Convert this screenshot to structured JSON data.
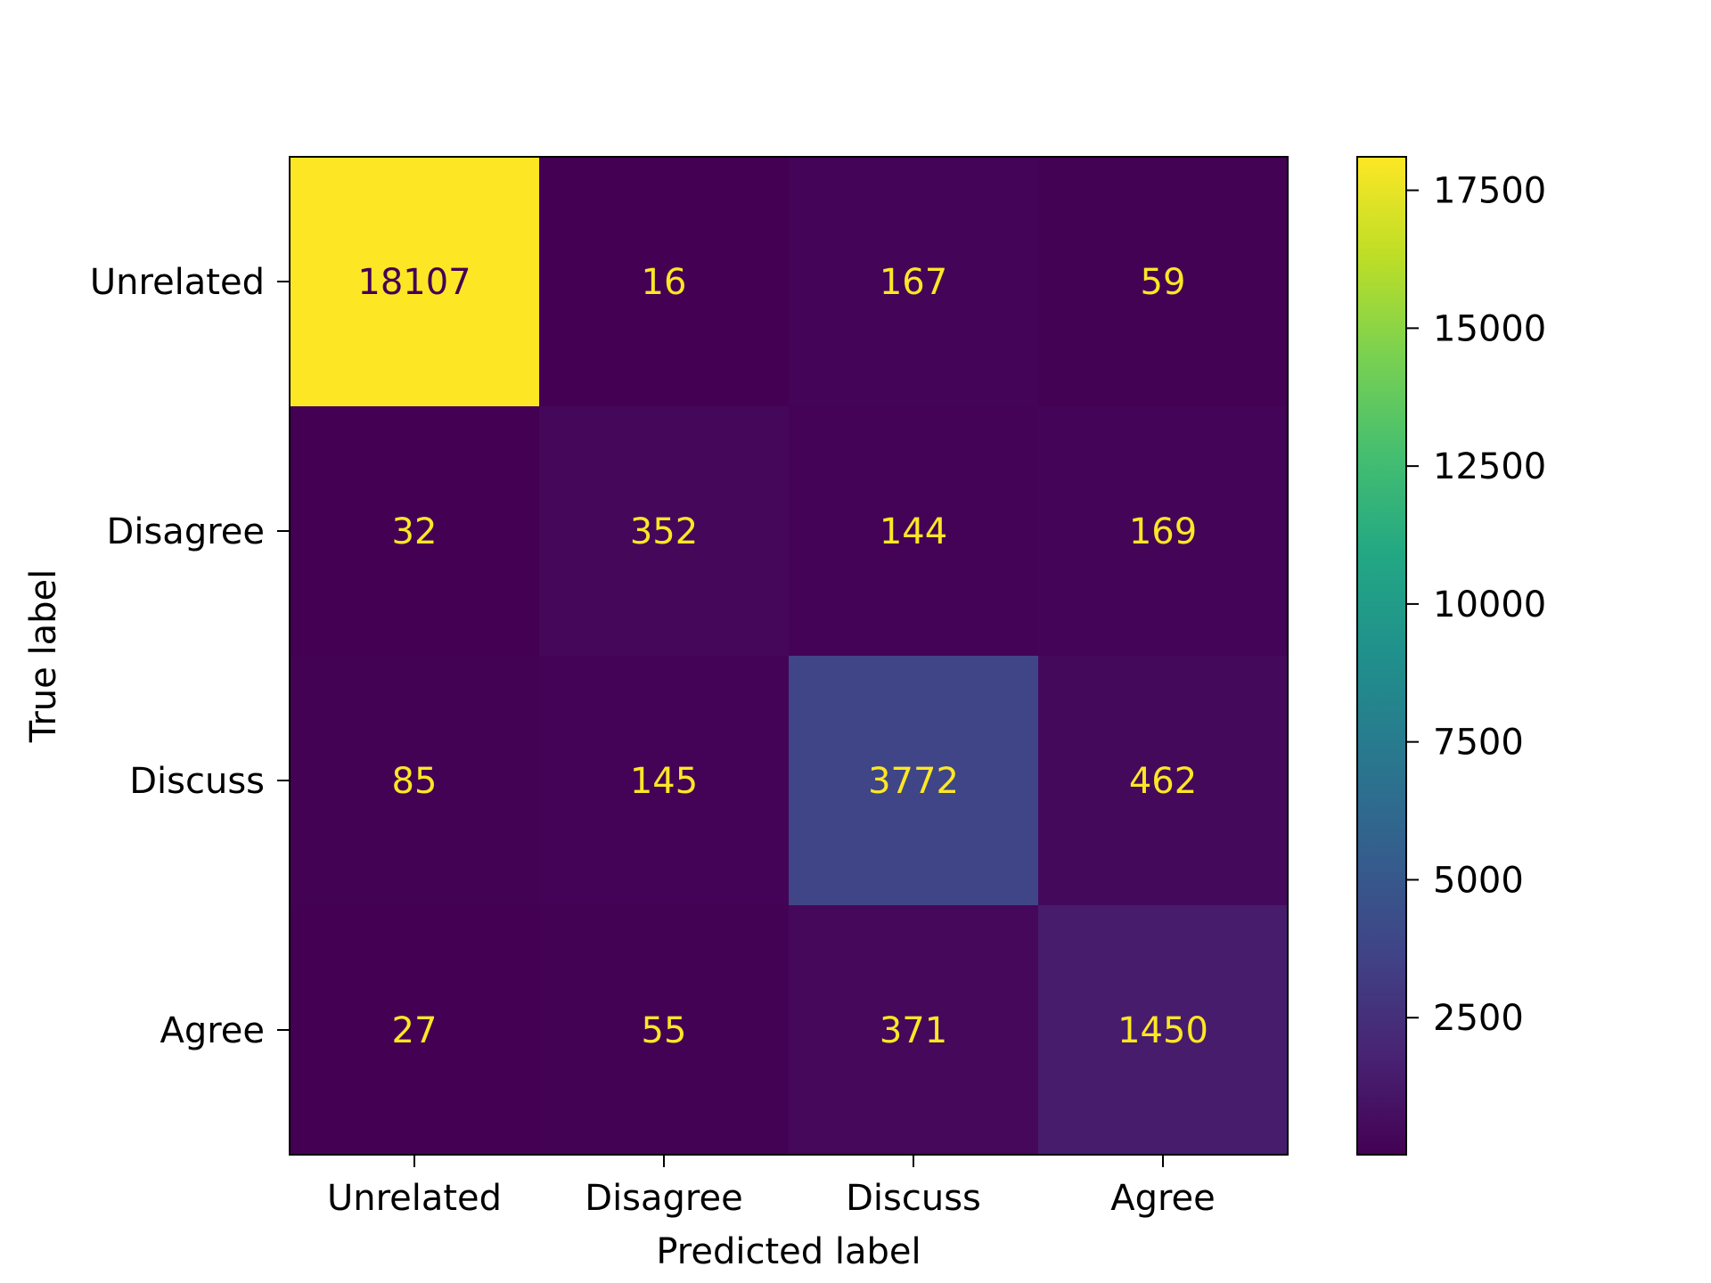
{
  "chart_data": {
    "type": "heatmap",
    "title": "",
    "xlabel": "Predicted label",
    "ylabel": "True label",
    "x_categories": [
      "Unrelated",
      "Disagree",
      "Discuss",
      "Agree"
    ],
    "y_categories": [
      "Unrelated",
      "Disagree",
      "Discuss",
      "Agree"
    ],
    "values": [
      [
        18107,
        16,
        167,
        59
      ],
      [
        32,
        352,
        144,
        169
      ],
      [
        85,
        145,
        3772,
        462
      ],
      [
        27,
        55,
        371,
        1450
      ]
    ],
    "colormap": "viridis",
    "color_range": [
      16,
      18107
    ],
    "colorbar": {
      "ticks": [
        2500,
        5000,
        7500,
        10000,
        12500,
        15000,
        17500
      ],
      "tick_labels": [
        "2500",
        "5000",
        "7500",
        "10000",
        "12500",
        "15000",
        "17500"
      ]
    },
    "text_colors": {
      "on_dark": "#fde725",
      "on_light": "#440154"
    },
    "grid": false,
    "legend": "colorbar-right"
  }
}
